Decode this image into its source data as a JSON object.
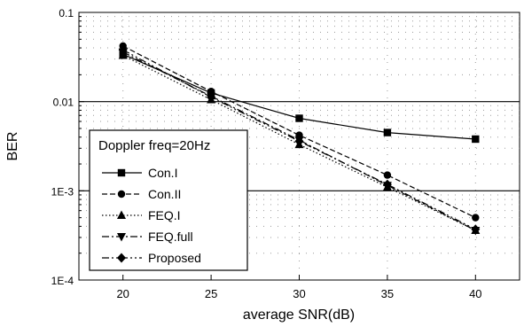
{
  "chart_data": {
    "type": "line",
    "title": "",
    "xlabel": "average SNR(dB)",
    "ylabel": "BER",
    "yscale": "log",
    "xlim": [
      17.5,
      42.5
    ],
    "ylim": [
      0.0001,
      0.1
    ],
    "x": [
      20,
      25,
      30,
      35,
      40
    ],
    "x_ticks": [
      "20",
      "25",
      "30",
      "35",
      "40"
    ],
    "y_ticks": [
      {
        "value": 0.1,
        "label": "0.1"
      },
      {
        "value": 0.01,
        "label": "0.01"
      },
      {
        "value": 0.001,
        "label": "1E-3"
      },
      {
        "value": 0.0001,
        "label": "1E-4"
      }
    ],
    "grid": "dotted minor gridlines, solid lines at 0.01 and 1E-3",
    "legend": {
      "title": "Doppler freq=20Hz",
      "position": "bottom-left"
    },
    "series": [
      {
        "name": "Con.I",
        "marker": "square",
        "dash": "solid",
        "values": [
          0.034,
          0.0125,
          0.0065,
          0.0045,
          0.0038
        ]
      },
      {
        "name": "Con.II",
        "marker": "circle",
        "dash": "dashed",
        "values": [
          0.042,
          0.013,
          0.0042,
          0.0015,
          0.0005
        ]
      },
      {
        "name": "FEQ.I",
        "marker": "triangle-up",
        "dash": "dotted",
        "values": [
          0.033,
          0.0105,
          0.0033,
          0.0011,
          0.00036
        ]
      },
      {
        "name": "FEQ.full",
        "marker": "triangle-down",
        "dash": "dashdot",
        "values": [
          0.036,
          0.0115,
          0.0037,
          0.00115,
          0.00036
        ]
      },
      {
        "name": "Proposed",
        "marker": "diamond",
        "dash": "dashdotdot",
        "values": [
          0.038,
          0.0112,
          0.0036,
          0.00118,
          0.00037
        ]
      }
    ]
  }
}
